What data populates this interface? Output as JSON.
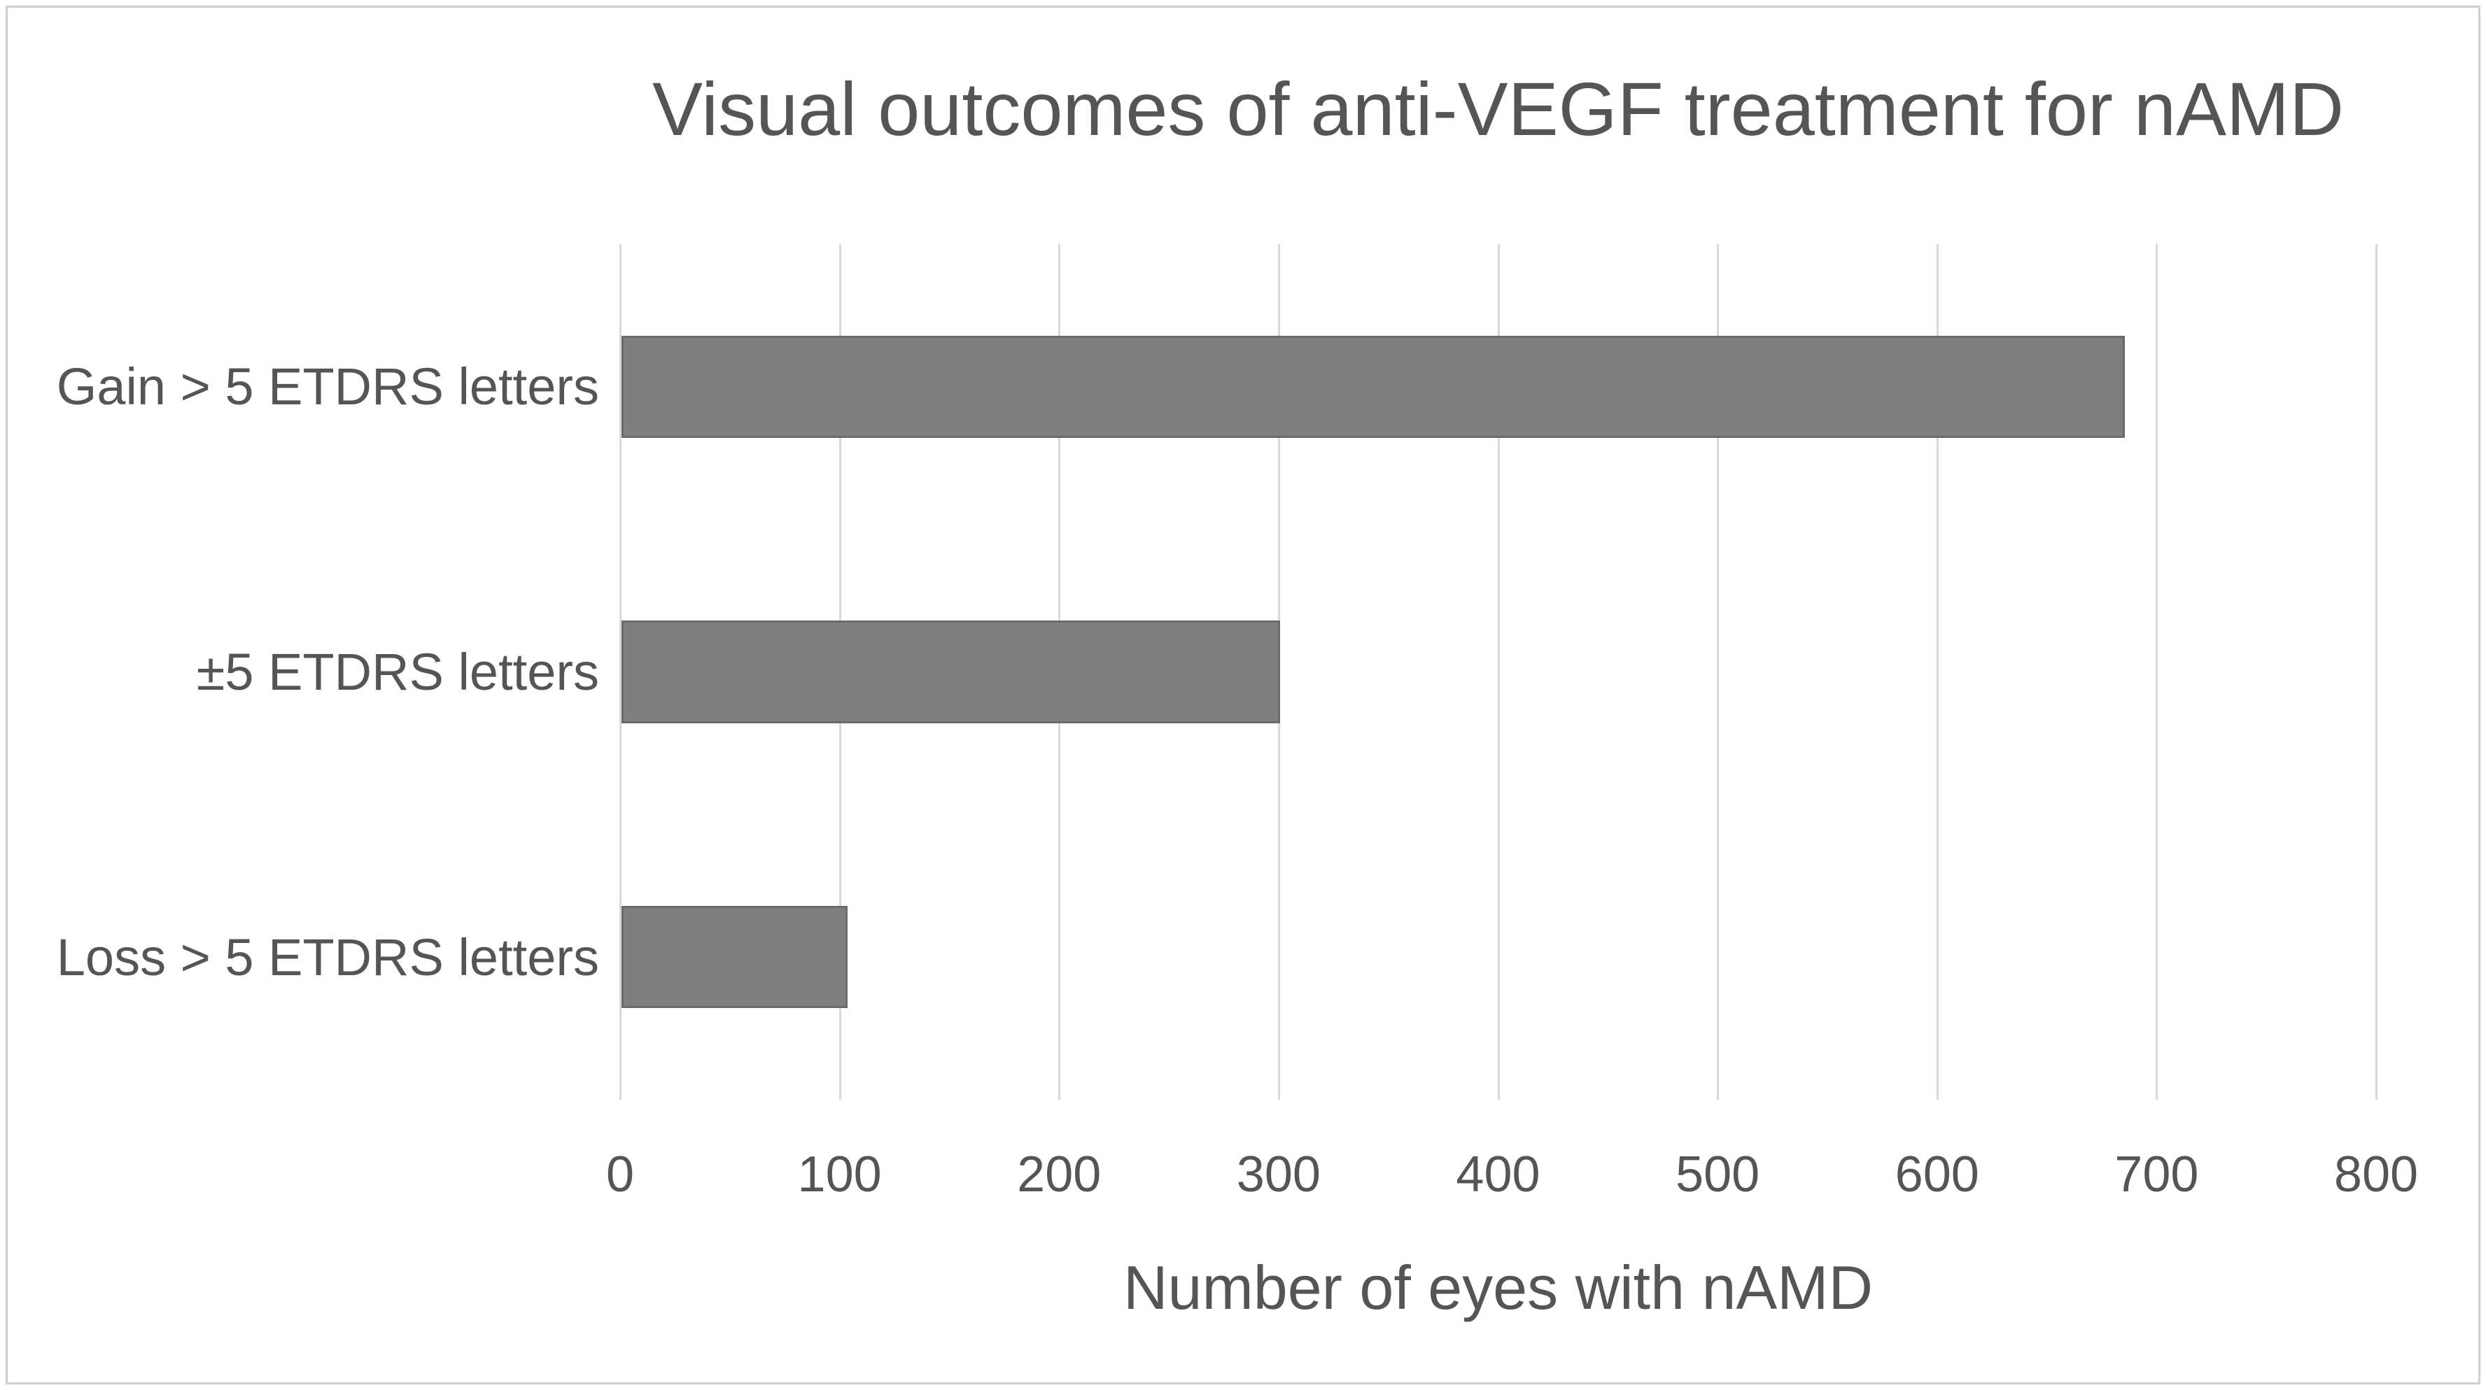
{
  "chart_data": {
    "type": "bar",
    "orientation": "horizontal",
    "title": "Visual outcomes of anti-VEGF treatment for nAMD",
    "categories": [
      "Gain > 5 ETDRS letters",
      "±5 ETDRS letters",
      "Loss > 5 ETDRS letters"
    ],
    "values": [
      685,
      300,
      103
    ],
    "xlabel": "Number of eyes with nAMD",
    "ylabel": "",
    "xlim": [
      0,
      800
    ],
    "xticks": [
      0,
      100,
      200,
      300,
      400,
      500,
      600,
      700,
      800
    ],
    "grid": "vertical-gridlines-on",
    "legend": "none",
    "colors": {
      "bar_fill": "#7f7f7f",
      "bar_border": "#6a6a6a",
      "gridline": "#d9d9d9",
      "text": "#555555",
      "figure_border": "#cfcfcf",
      "background": "#ffffff"
    }
  }
}
